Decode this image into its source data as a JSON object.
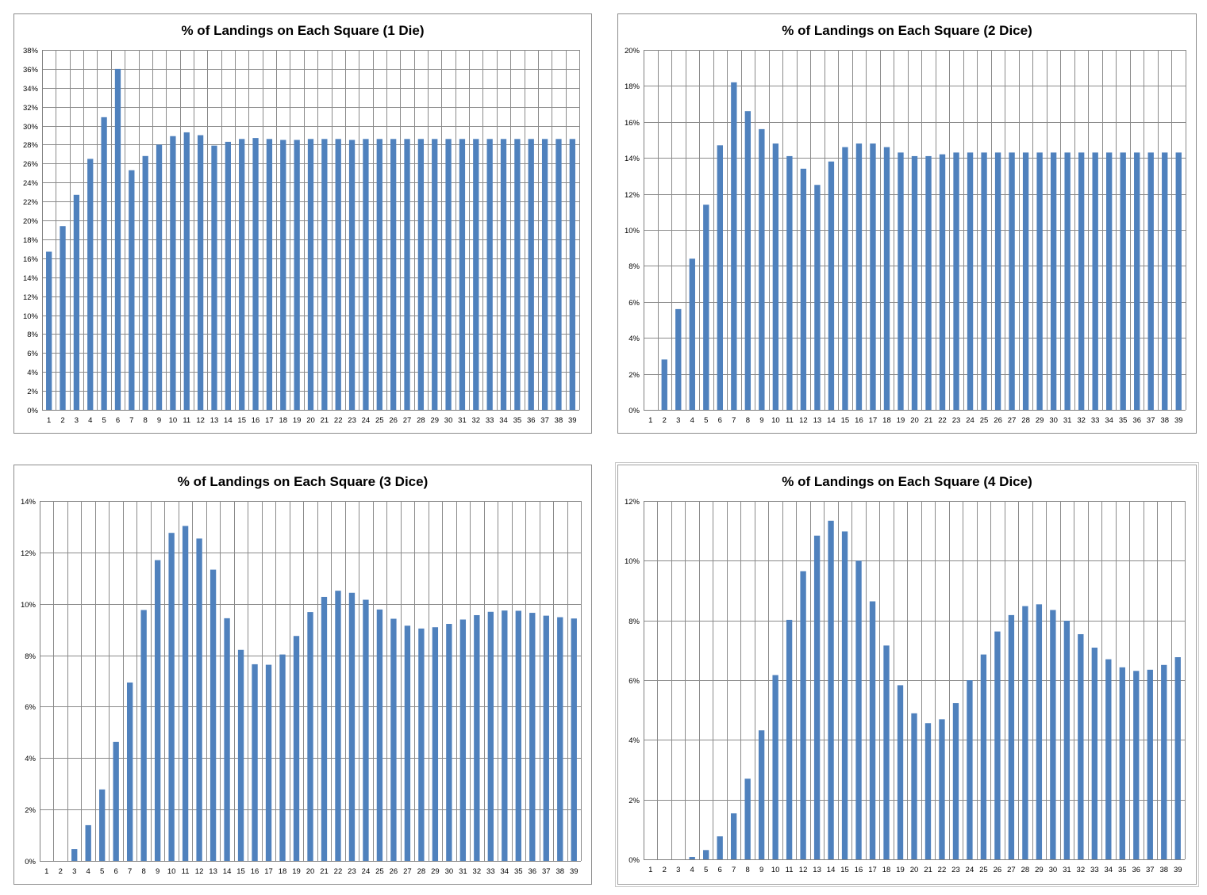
{
  "colors": {
    "bar": "#4f81bd",
    "grid": "#8a8a8a",
    "background": "#ffffff"
  },
  "chart_data": [
    {
      "type": "bar",
      "title": "% of Landings on Each Square (1 Die)",
      "xlabel": "",
      "ylabel": "",
      "categories": [
        "1",
        "2",
        "3",
        "4",
        "5",
        "6",
        "7",
        "8",
        "9",
        "10",
        "11",
        "12",
        "13",
        "14",
        "15",
        "16",
        "17",
        "18",
        "19",
        "20",
        "21",
        "22",
        "23",
        "24",
        "25",
        "26",
        "27",
        "28",
        "29",
        "30",
        "31",
        "32",
        "33",
        "34",
        "35",
        "36",
        "37",
        "38",
        "39"
      ],
      "values": [
        16.7,
        19.4,
        22.7,
        26.5,
        30.9,
        36.0,
        25.3,
        26.8,
        28.0,
        28.9,
        29.3,
        29.0,
        27.9,
        28.3,
        28.6,
        28.7,
        28.6,
        28.5,
        28.5,
        28.6,
        28.6,
        28.6,
        28.5,
        28.6,
        28.6,
        28.6,
        28.6,
        28.6,
        28.6,
        28.6,
        28.6,
        28.6,
        28.6,
        28.6,
        28.6,
        28.6,
        28.6,
        28.6,
        28.6
      ],
      "ylim": [
        0,
        38
      ],
      "yticks": [
        "0%",
        "2%",
        "4%",
        "6%",
        "8%",
        "10%",
        "12%",
        "14%",
        "16%",
        "18%",
        "20%",
        "22%",
        "24%",
        "26%",
        "28%",
        "30%",
        "32%",
        "34%",
        "36%",
        "38%"
      ],
      "grid": true,
      "legend": "none"
    },
    {
      "type": "bar",
      "title": "% of Landings on Each Square (2 Dice)",
      "xlabel": "",
      "ylabel": "",
      "categories": [
        "1",
        "2",
        "3",
        "4",
        "5",
        "6",
        "7",
        "8",
        "9",
        "10",
        "11",
        "12",
        "13",
        "14",
        "15",
        "16",
        "17",
        "18",
        "19",
        "20",
        "21",
        "22",
        "23",
        "24",
        "25",
        "26",
        "27",
        "28",
        "29",
        "30",
        "31",
        "32",
        "33",
        "34",
        "35",
        "36",
        "37",
        "38",
        "39"
      ],
      "values": [
        0,
        2.8,
        5.6,
        8.4,
        11.4,
        14.7,
        18.2,
        16.6,
        15.6,
        14.8,
        14.1,
        13.4,
        12.5,
        13.8,
        14.6,
        14.8,
        14.8,
        14.6,
        14.3,
        14.1,
        14.1,
        14.2,
        14.3,
        14.3,
        14.3,
        14.3,
        14.3,
        14.3,
        14.3,
        14.3,
        14.3,
        14.3,
        14.3,
        14.3,
        14.3,
        14.3,
        14.3,
        14.3,
        14.3
      ],
      "ylim": [
        0,
        20
      ],
      "yticks": [
        "0%",
        "2%",
        "4%",
        "6%",
        "8%",
        "10%",
        "12%",
        "14%",
        "16%",
        "18%",
        "20%"
      ],
      "grid": true,
      "legend": "none"
    },
    {
      "type": "bar",
      "title": "% of Landings on Each Square (3 Dice)",
      "xlabel": "",
      "ylabel": "",
      "categories": [
        "1",
        "2",
        "3",
        "4",
        "5",
        "6",
        "7",
        "8",
        "9",
        "10",
        "11",
        "12",
        "13",
        "14",
        "15",
        "16",
        "17",
        "18",
        "19",
        "20",
        "21",
        "22",
        "23",
        "24",
        "25",
        "26",
        "27",
        "28",
        "29",
        "30",
        "31",
        "32",
        "33",
        "34",
        "35",
        "36",
        "37",
        "38",
        "39"
      ],
      "values": [
        0,
        0,
        0.46,
        1.39,
        2.78,
        4.63,
        6.94,
        9.76,
        11.7,
        12.76,
        13.03,
        12.54,
        11.33,
        9.44,
        8.21,
        7.65,
        7.63,
        8.03,
        8.75,
        9.68,
        10.27,
        10.51,
        10.43,
        10.16,
        9.78,
        9.42,
        9.15,
        9.04,
        9.09,
        9.22,
        9.39,
        9.56,
        9.69,
        9.74,
        9.73,
        9.65,
        9.54,
        9.48,
        9.43
      ],
      "ylim": [
        0,
        14
      ],
      "yticks": [
        "0%",
        "2%",
        "4%",
        "6%",
        "8%",
        "10%",
        "12%",
        "14%"
      ],
      "grid": true,
      "legend": "none"
    },
    {
      "type": "bar",
      "title": "% of Landings on Each Square (4 Dice)",
      "xlabel": "",
      "ylabel": "",
      "categories": [
        "1",
        "2",
        "3",
        "4",
        "5",
        "6",
        "7",
        "8",
        "9",
        "10",
        "11",
        "12",
        "13",
        "14",
        "15",
        "16",
        "17",
        "18",
        "19",
        "20",
        "21",
        "22",
        "23",
        "24",
        "25",
        "26",
        "27",
        "28",
        "29",
        "30",
        "31",
        "32",
        "33",
        "34",
        "35",
        "36",
        "37",
        "38",
        "39"
      ],
      "values": [
        0,
        0,
        0,
        0.08,
        0.31,
        0.77,
        1.54,
        2.7,
        4.32,
        6.17,
        8.02,
        9.65,
        10.84,
        11.34,
        10.98,
        10.0,
        8.64,
        7.16,
        5.83,
        4.89,
        4.56,
        4.69,
        5.23,
        6.0,
        6.86,
        7.63,
        8.18,
        8.48,
        8.54,
        8.35,
        7.99,
        7.54,
        7.09,
        6.7,
        6.43,
        6.31,
        6.35,
        6.51,
        6.77
      ],
      "ylim": [
        0,
        12
      ],
      "yticks": [
        "0%",
        "2%",
        "4%",
        "6%",
        "8%",
        "10%",
        "12%"
      ],
      "grid": true,
      "legend": "none"
    }
  ]
}
